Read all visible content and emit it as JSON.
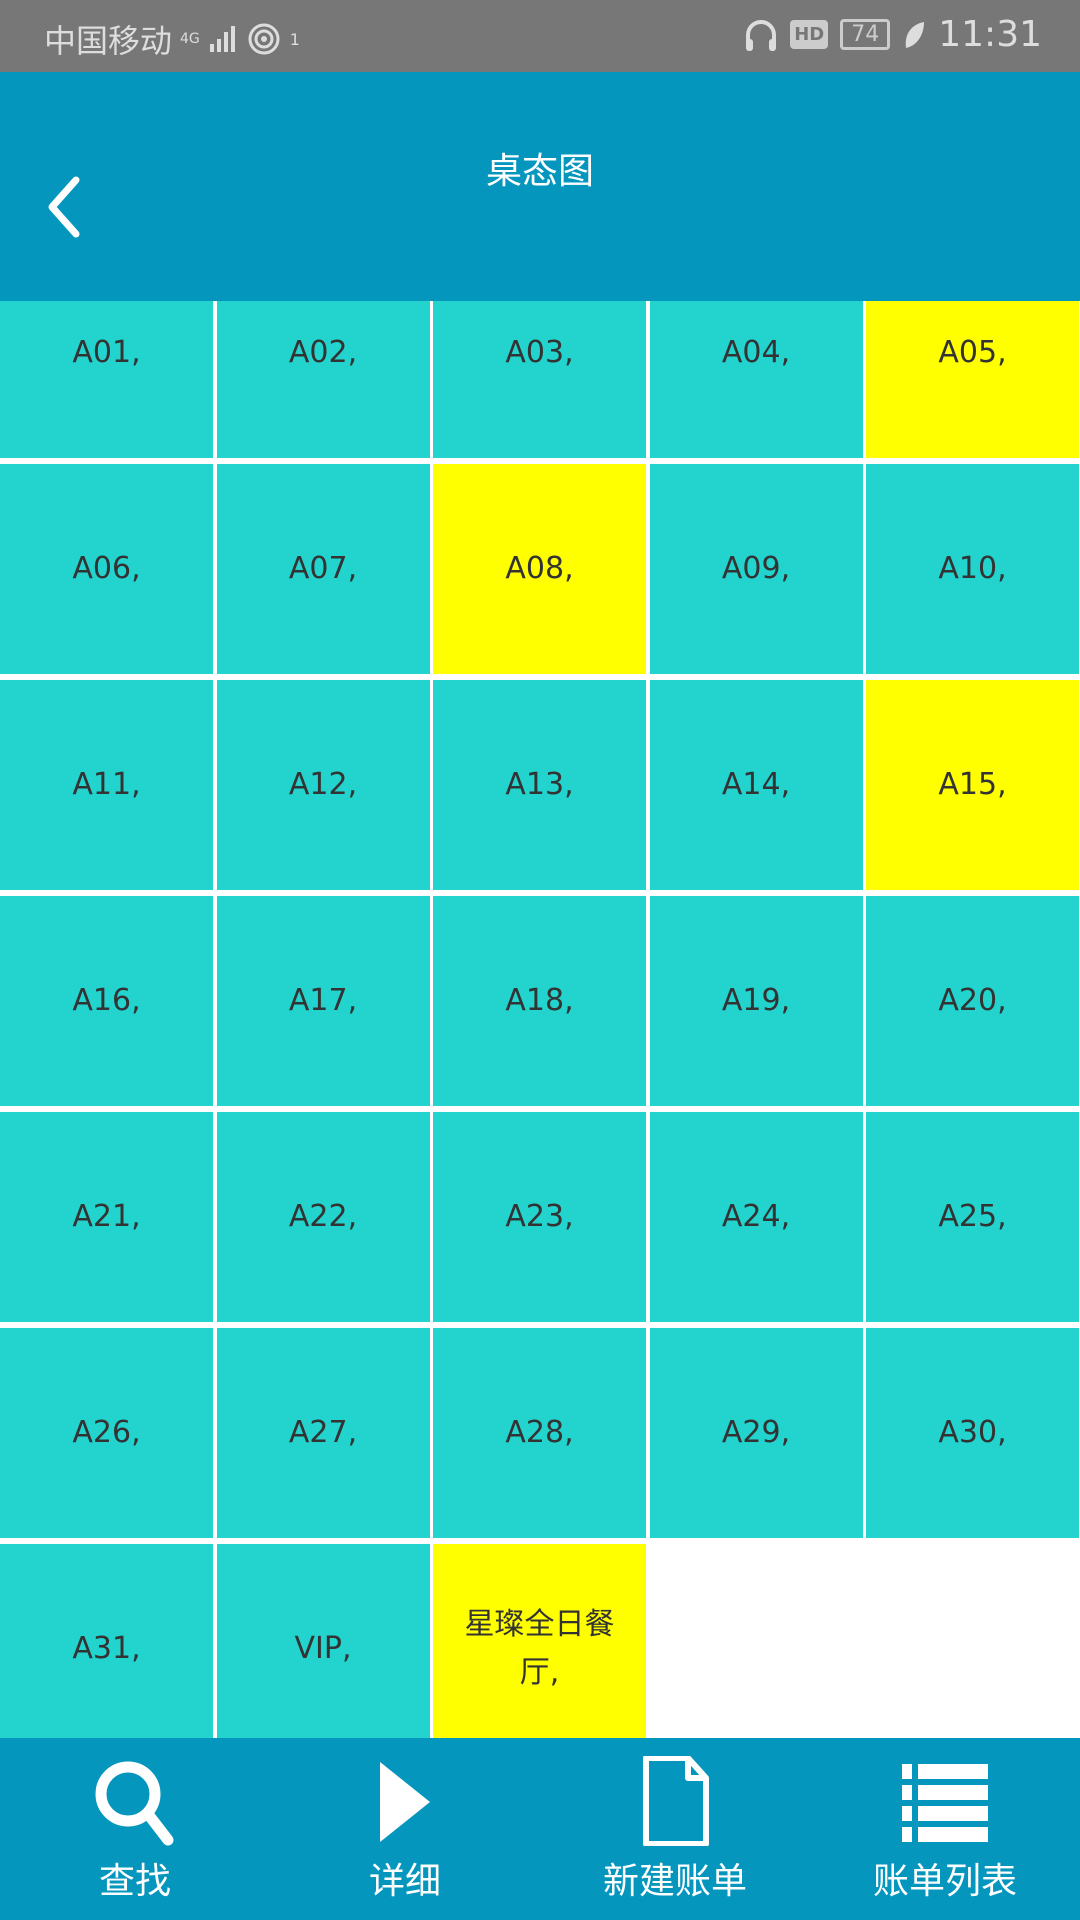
{
  "status_bar": {
    "carrier": "中国移动",
    "network": "4G",
    "hotspot_count": "1",
    "hd": "HD",
    "battery": "74",
    "time": "11:31"
  },
  "header": {
    "title": "桌态图"
  },
  "colors": {
    "header": "#0596BE",
    "free": "#22D3CE",
    "occupied": "#FFFF00",
    "status_bar": "#777777"
  },
  "tables": [
    {
      "label": "A01,",
      "state": "free"
    },
    {
      "label": "A02,",
      "state": "free"
    },
    {
      "label": "A03,",
      "state": "free"
    },
    {
      "label": "A04,",
      "state": "free"
    },
    {
      "label": "A05,",
      "state": "occupied"
    },
    {
      "label": "A06,",
      "state": "free"
    },
    {
      "label": "A07,",
      "state": "free"
    },
    {
      "label": "A08,",
      "state": "occupied"
    },
    {
      "label": "A09,",
      "state": "free"
    },
    {
      "label": "A10,",
      "state": "free"
    },
    {
      "label": "A11,",
      "state": "free"
    },
    {
      "label": "A12,",
      "state": "free"
    },
    {
      "label": "A13,",
      "state": "free"
    },
    {
      "label": "A14,",
      "state": "free"
    },
    {
      "label": "A15,",
      "state": "occupied"
    },
    {
      "label": "A16,",
      "state": "free"
    },
    {
      "label": "A17,",
      "state": "free"
    },
    {
      "label": "A18,",
      "state": "free"
    },
    {
      "label": "A19,",
      "state": "free"
    },
    {
      "label": "A20,",
      "state": "free"
    },
    {
      "label": "A21,",
      "state": "free"
    },
    {
      "label": "A22,",
      "state": "free"
    },
    {
      "label": "A23,",
      "state": "free"
    },
    {
      "label": "A24,",
      "state": "free"
    },
    {
      "label": "A25,",
      "state": "free"
    },
    {
      "label": "A26,",
      "state": "free"
    },
    {
      "label": "A27,",
      "state": "free"
    },
    {
      "label": "A28,",
      "state": "free"
    },
    {
      "label": "A29,",
      "state": "free"
    },
    {
      "label": "A30,",
      "state": "free"
    },
    {
      "label": "A31,",
      "state": "free"
    },
    {
      "label": "VIP,",
      "state": "free"
    },
    {
      "label": "星璨全日餐厅,",
      "state": "occupied"
    }
  ],
  "bottom_nav": [
    {
      "label": "查找",
      "icon": "search-icon"
    },
    {
      "label": "详细",
      "icon": "play-icon"
    },
    {
      "label": "新建账单",
      "icon": "document-icon"
    },
    {
      "label": "账单列表",
      "icon": "list-icon"
    }
  ]
}
